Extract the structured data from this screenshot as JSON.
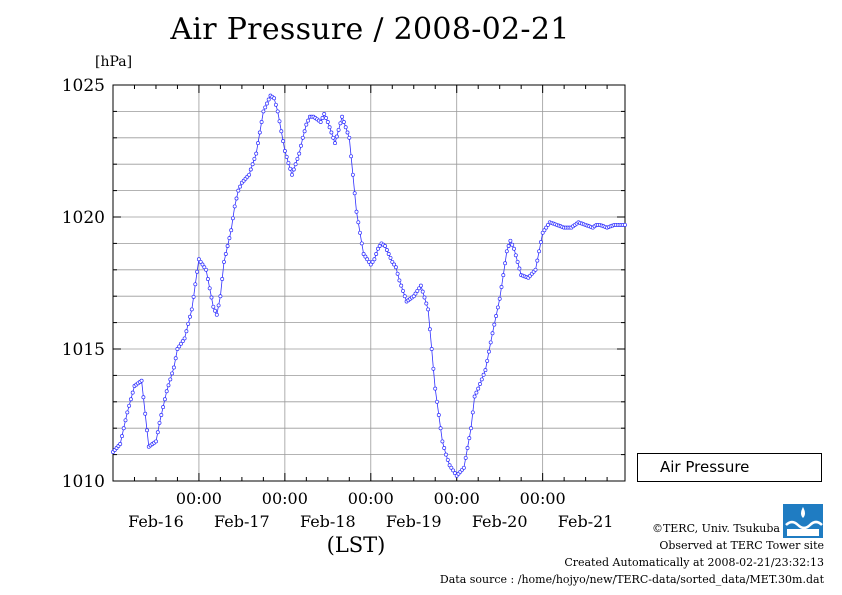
{
  "chart_data": {
    "type": "line",
    "title": "Air Pressure / 2008-02-21",
    "unit_label": "[hPa]",
    "xlabel": "(LST)",
    "x_unit": "hours from 2008-02-15 00:00 LST",
    "xlim": [
      0,
      143
    ],
    "ylim": [
      1010,
      1025
    ],
    "yticks": [
      1010,
      1015,
      1020,
      1025
    ],
    "minor_ytick_step": 1,
    "x_major_ticks": [
      24,
      48,
      72,
      96,
      120
    ],
    "x_major_tick_label": "00:00",
    "x_minor_tick_step": 6,
    "date_labels": [
      {
        "at": 12,
        "label": "Feb-16"
      },
      {
        "at": 36,
        "label": "Feb-17"
      },
      {
        "at": 60,
        "label": "Feb-18"
      },
      {
        "at": 84,
        "label": "Feb-19"
      },
      {
        "at": 108,
        "label": "Feb-20"
      },
      {
        "at": 132,
        "label": "Feb-21"
      }
    ],
    "grid": true,
    "legend_position": "right-bottom",
    "color": "#3030ff",
    "series": [
      {
        "name": "Air Pressure",
        "x": [
          0,
          2,
          4,
          6,
          8,
          10,
          12,
          13,
          15,
          17,
          18,
          20,
          22,
          24,
          26,
          28,
          29,
          30,
          31,
          33,
          34,
          35,
          36,
          38,
          40,
          42,
          44,
          45,
          46,
          48,
          50,
          52,
          53,
          54,
          55,
          56,
          58,
          59,
          60,
          62,
          63,
          64,
          66,
          68,
          70,
          72,
          73,
          74,
          75,
          76,
          78,
          79,
          80,
          81,
          82,
          84,
          86,
          88,
          90,
          92,
          93,
          94,
          96,
          98,
          100,
          101,
          102,
          104,
          106,
          108,
          110,
          111,
          112,
          114,
          116,
          118,
          120,
          122,
          124,
          126,
          128,
          129,
          130,
          132,
          134,
          135,
          136,
          138,
          140,
          143
        ],
        "y": [
          1011.1,
          1011.4,
          1012.6,
          1013.6,
          1013.8,
          1011.3,
          1011.5,
          1012.2,
          1013.4,
          1014.3,
          1015.0,
          1015.4,
          1016.5,
          1018.4,
          1018.0,
          1016.6,
          1016.3,
          1017.0,
          1018.3,
          1019.5,
          1020.4,
          1021.0,
          1021.3,
          1021.6,
          1022.4,
          1024.0,
          1024.6,
          1024.5,
          1024.0,
          1022.5,
          1021.6,
          1022.4,
          1023.0,
          1023.5,
          1023.8,
          1023.8,
          1023.6,
          1023.9,
          1023.6,
          1022.8,
          1023.3,
          1023.8,
          1023.0,
          1020.2,
          1018.6,
          1018.2,
          1018.4,
          1018.8,
          1019.0,
          1018.9,
          1018.3,
          1018.1,
          1017.6,
          1017.2,
          1016.8,
          1017.0,
          1017.4,
          1016.5,
          1013.5,
          1011.5,
          1011.0,
          1010.6,
          1010.2,
          1010.5,
          1012.0,
          1013.2,
          1013.5,
          1014.2,
          1015.6,
          1016.9,
          1018.7,
          1019.1,
          1018.8,
          1017.8,
          1017.7,
          1018.0,
          1019.4,
          1019.8,
          1019.7,
          1019.6,
          1019.6,
          1019.7,
          1019.8,
          1019.7,
          1019.6,
          1019.7,
          1019.7,
          1019.6,
          1019.7,
          1019.7
        ]
      }
    ]
  },
  "credits": {
    "copyright": "©TERC, Univ. Tsukuba",
    "observed": "Observed at TERC Tower site",
    "created": "Created Automatically at 2008-02-21/23:32:13",
    "source": "Data source : /home/hojyo/new/TERC-data/sorted_data/MET.30m.dat"
  },
  "logo": {
    "text": "TERC",
    "color": "#1f7cc2"
  }
}
